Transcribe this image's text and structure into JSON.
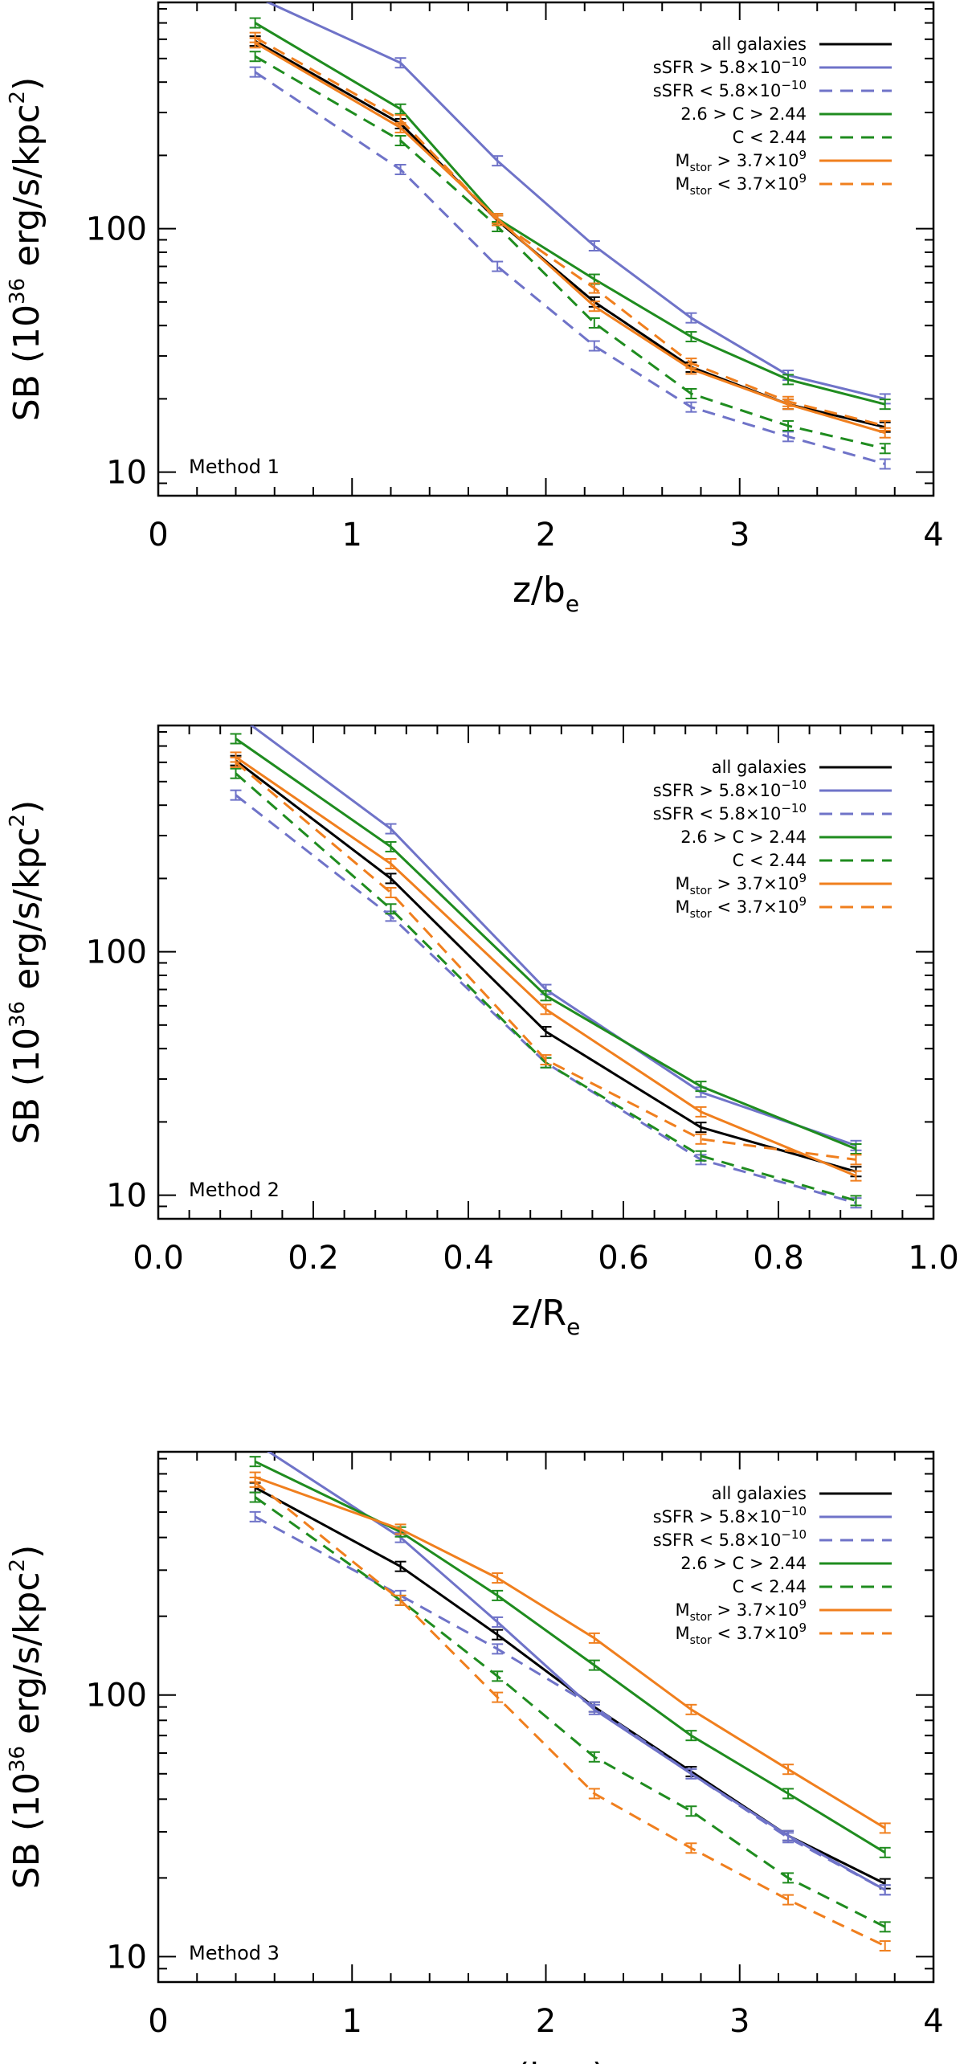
{
  "figure_title": "",
  "legend_entries": [
    {
      "key": "all",
      "label": "all galaxies",
      "color": "#000000",
      "dash": false
    },
    {
      "key": "ssfr_hi",
      "label": "sSFR > 5.8×10",
      "sup": "−10",
      "color": "#6f73c8",
      "dash": false
    },
    {
      "key": "ssfr_lo",
      "label": "sSFR < 5.8×10",
      "sup": "−10",
      "color": "#6f73c8",
      "dash": true
    },
    {
      "key": "c_hi",
      "label": "2.6 > C > 2.44",
      "color": "#1f8c1f",
      "dash": false
    },
    {
      "key": "c_lo",
      "label": "C < 2.44",
      "color": "#1f8c1f",
      "dash": true
    },
    {
      "key": "m_hi",
      "label": "M",
      "sub": "stor",
      "rest": " > 3.7×10",
      "sup": "9",
      "color": "#f07f1e",
      "dash": false
    },
    {
      "key": "m_lo",
      "label": "M",
      "sub": "stor",
      "rest": " < 3.7×10",
      "sup": "9",
      "color": "#f07f1e",
      "dash": true
    }
  ],
  "chart_data": [
    {
      "type": "line",
      "panel": "top",
      "method_label": "Method 1",
      "xlabel": "z/b",
      "xlabel_sub": "e",
      "ylabel": "SB (10",
      "ylabel_sup": "36",
      "ylabel_rest": " erg/s/kpc",
      "ylabel_sup2": "2",
      "ylabel_end": ")",
      "xlim": [
        0,
        4
      ],
      "ylim": [
        8,
        850
      ],
      "yscale": "log",
      "xticks": [
        0,
        1,
        2,
        3,
        4
      ],
      "xtick_labels": [
        "0",
        "1",
        "2",
        "3",
        "4"
      ],
      "yticks": [
        10,
        100
      ],
      "ytick_labels": [
        "10",
        "100"
      ],
      "x": [
        0.5,
        1.25,
        1.75,
        2.25,
        2.75,
        3.25,
        3.75
      ],
      "series": [
        {
          "key": "all",
          "values": [
            590,
            270,
            108,
            50,
            27,
            19,
            15.3
          ]
        },
        {
          "key": "ssfr_hi",
          "values": [
            900,
            480,
            190,
            85,
            43,
            25,
            20
          ]
        },
        {
          "key": "ssfr_lo",
          "values": [
            440,
            175,
            70,
            33,
            18.5,
            14,
            10.8
          ]
        },
        {
          "key": "c_hi",
          "values": [
            700,
            310,
            110,
            62,
            36,
            24,
            19
          ]
        },
        {
          "key": "c_lo",
          "values": [
            510,
            230,
            102,
            41,
            21,
            15.5,
            12.5
          ]
        },
        {
          "key": "m_hi",
          "values": [
            580,
            260,
            110,
            48,
            26.5,
            19,
            14.5
          ]
        },
        {
          "key": "m_lo",
          "values": [
            610,
            280,
            108,
            57,
            28,
            19.5,
            15.5
          ]
        }
      ]
    },
    {
      "type": "line",
      "panel": "middle",
      "method_label": "Method 2",
      "xlabel": "z/R",
      "xlabel_sub": "e",
      "ylabel": "SB (10",
      "ylabel_sup": "36",
      "ylabel_rest": " erg/s/kpc",
      "ylabel_sup2": "2",
      "ylabel_end": ")",
      "xlim": [
        0,
        1
      ],
      "ylim": [
        8,
        850
      ],
      "yscale": "log",
      "xticks": [
        0,
        0.2,
        0.4,
        0.6,
        0.8,
        1.0
      ],
      "xtick_labels": [
        "0.0",
        "0.2",
        "0.4",
        "0.6",
        "0.8",
        "1.0"
      ],
      "yticks": [
        10,
        100
      ],
      "ytick_labels": [
        "10",
        "100"
      ],
      "x": [
        0.1,
        0.3,
        0.5,
        0.7,
        0.9
      ],
      "series": [
        {
          "key": "all",
          "values": [
            610,
            200,
            47,
            19,
            12.5
          ]
        },
        {
          "key": "ssfr_hi",
          "values": [
            950,
            320,
            70,
            26.5,
            16
          ]
        },
        {
          "key": "ssfr_lo",
          "values": [
            440,
            140,
            35,
            14,
            9.3
          ]
        },
        {
          "key": "c_hi",
          "values": [
            750,
            270,
            66,
            28,
            15.5
          ]
        },
        {
          "key": "c_lo",
          "values": [
            540,
            150,
            35,
            14.5,
            9.5
          ]
        },
        {
          "key": "m_hi",
          "values": [
            630,
            230,
            58,
            22,
            12
          ]
        },
        {
          "key": "m_lo",
          "values": [
            600,
            175,
            36,
            17,
            14
          ]
        }
      ]
    },
    {
      "type": "line",
      "panel": "bottom",
      "method_label": "Method 3",
      "xlabel": "z (kpc)",
      "xlabel_sub": "",
      "ylabel": "SB (10",
      "ylabel_sup": "36",
      "ylabel_rest": " erg/s/kpc",
      "ylabel_sup2": "2",
      "ylabel_end": ")",
      "xlim": [
        0,
        4
      ],
      "ylim": [
        8,
        850
      ],
      "yscale": "log",
      "xticks": [
        0,
        1,
        2,
        3,
        4
      ],
      "xtick_labels": [
        "0",
        "1",
        "2",
        "3",
        "4"
      ],
      "yticks": [
        10,
        100
      ],
      "ytick_labels": [
        "10",
        "100"
      ],
      "x": [
        0.5,
        1.25,
        1.75,
        2.25,
        2.75,
        3.25,
        3.75
      ],
      "series": [
        {
          "key": "all",
          "values": [
            620,
            310,
            170,
            90,
            51,
            29,
            19
          ]
        },
        {
          "key": "ssfr_hi",
          "values": [
            920,
            400,
            190,
            88,
            50,
            29,
            18
          ]
        },
        {
          "key": "ssfr_lo",
          "values": [
            480,
            240,
            150,
            90,
            50,
            28.5,
            18
          ]
        },
        {
          "key": "c_hi",
          "values": [
            780,
            420,
            240,
            130,
            70,
            42,
            25
          ]
        },
        {
          "key": "c_lo",
          "values": [
            570,
            230,
            118,
            58,
            36,
            20,
            13
          ]
        },
        {
          "key": "m_hi",
          "values": [
            680,
            430,
            280,
            165,
            88,
            52,
            31
          ]
        },
        {
          "key": "m_lo",
          "values": [
            650,
            230,
            98,
            42,
            26,
            16.5,
            11
          ]
        }
      ]
    }
  ]
}
